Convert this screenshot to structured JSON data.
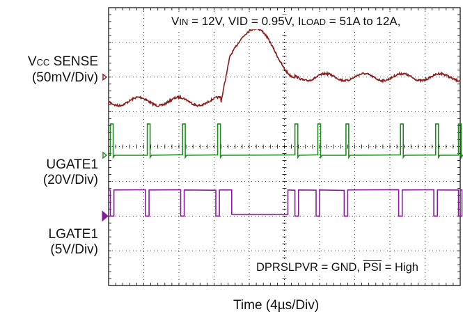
{
  "chart_data": {
    "type": "line",
    "grid": true,
    "grid_divisions": {
      "x": 10,
      "y": 8
    },
    "xlabel": "Time (4µs/Div)",
    "conditions": {
      "vin": {
        "symbol": "V",
        "subscript": "IN",
        "value": "= 12V,"
      },
      "vid": "VID = 0.95V,",
      "iload": {
        "symbol": "I",
        "subscript": "LOAD",
        "value": "= 51A to 12A,"
      }
    },
    "footnote": {
      "prefix": "DPRSLPVR = GND, ",
      "overlined": "PSI",
      "suffix": " = High"
    },
    "channels": [
      {
        "id": "vcc",
        "label_symbol": "V",
        "label_subscript": "CC",
        "label_rest": " SENSE",
        "scale": "(50mV/Div)",
        "color": "#8b1a1a",
        "ground_div_from_top": 2.0,
        "trace_div_from_top": {
          "before_step": 2.7,
          "peak": 0.6,
          "after_step": 2.0
        },
        "step_time_div": 3.2
      },
      {
        "id": "ugate1",
        "label": "UGATE1",
        "scale": "(20V/Div)",
        "color": "#1e8c1e",
        "ground_div_from_top": 4.25,
        "high_div_from_top": 3.35,
        "pulse_times_div": [
          0.05,
          1.1,
          2.1,
          3.1,
          5.3,
          5.95,
          6.75,
          8.3,
          9.3,
          9.95
        ]
      },
      {
        "id": "lgate1",
        "label": "LGATE1",
        "scale": "(5V/Div)",
        "color": "#8a1a9c",
        "ground_div_from_top": 6.0,
        "high_div_from_top": 5.25,
        "idle_div_from_top": 5.95,
        "idle_interval_div": [
          3.5,
          5.1
        ]
      }
    ]
  }
}
